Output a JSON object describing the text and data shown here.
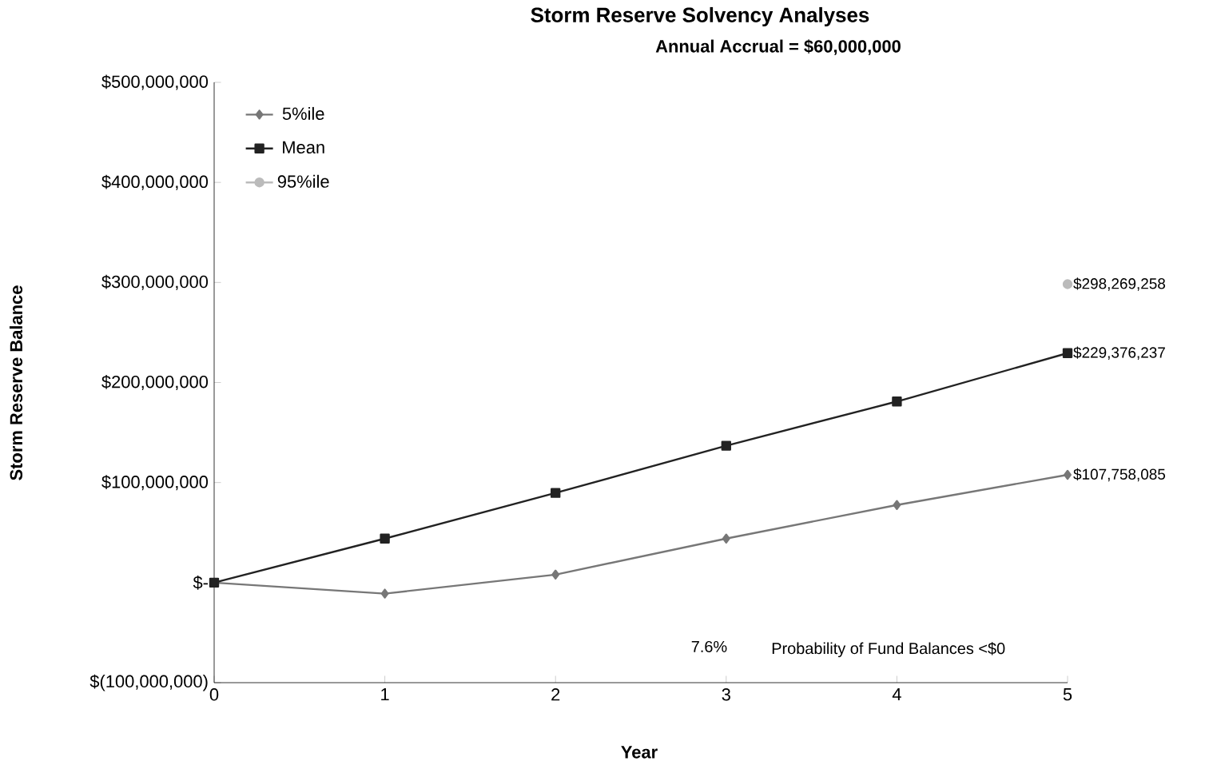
{
  "chart_data": {
    "type": "line",
    "title": "Storm Reserve Solvency Analyses",
    "subtitle": "Annual Accrual = $60,000,000",
    "xlabel": "Year",
    "ylabel": "Storm Reserve Balance",
    "x": [
      0,
      1,
      2,
      3,
      4,
      5
    ],
    "xlim": [
      0,
      5
    ],
    "xticks": [
      0,
      1,
      2,
      3,
      4,
      5
    ],
    "ylim": [
      -100000000,
      500000000
    ],
    "yticks": [
      {
        "value": -100000000,
        "label": "$(100,000,000)"
      },
      {
        "value": 0,
        "label": "$-"
      },
      {
        "value": 100000000,
        "label": "$100,000,000"
      },
      {
        "value": 200000000,
        "label": "$200,000,000"
      },
      {
        "value": 300000000,
        "label": "$300,000,000"
      },
      {
        "value": 400000000,
        "label": "$400,000,000"
      },
      {
        "value": 500000000,
        "label": "$500,000,000"
      }
    ],
    "series": [
      {
        "name": "5%ile",
        "color": "#777777",
        "marker": "diamond",
        "values": [
          0,
          -11000000,
          8000000,
          44000000,
          77600000,
          107758085
        ],
        "value_labels": [
          null,
          null,
          null,
          null,
          null,
          "$107,758,085"
        ]
      },
      {
        "name": "Mean",
        "color": "#222222",
        "marker": "square",
        "values": [
          0,
          44000000,
          89600000,
          136800000,
          181000000,
          229376237
        ],
        "value_labels": [
          null,
          null,
          null,
          null,
          null,
          "$229,376,237"
        ]
      },
      {
        "name": "95%ile",
        "color": "#bbbbbb",
        "marker": "circle",
        "values": [
          null,
          null,
          null,
          null,
          null,
          298269258
        ],
        "value_labels": [
          null,
          null,
          null,
          null,
          null,
          "$298,269,258"
        ]
      }
    ],
    "legend": "top left",
    "grid": false,
    "annotations": [
      "7.6%",
      "Probability of Fund Balances <$0"
    ]
  }
}
